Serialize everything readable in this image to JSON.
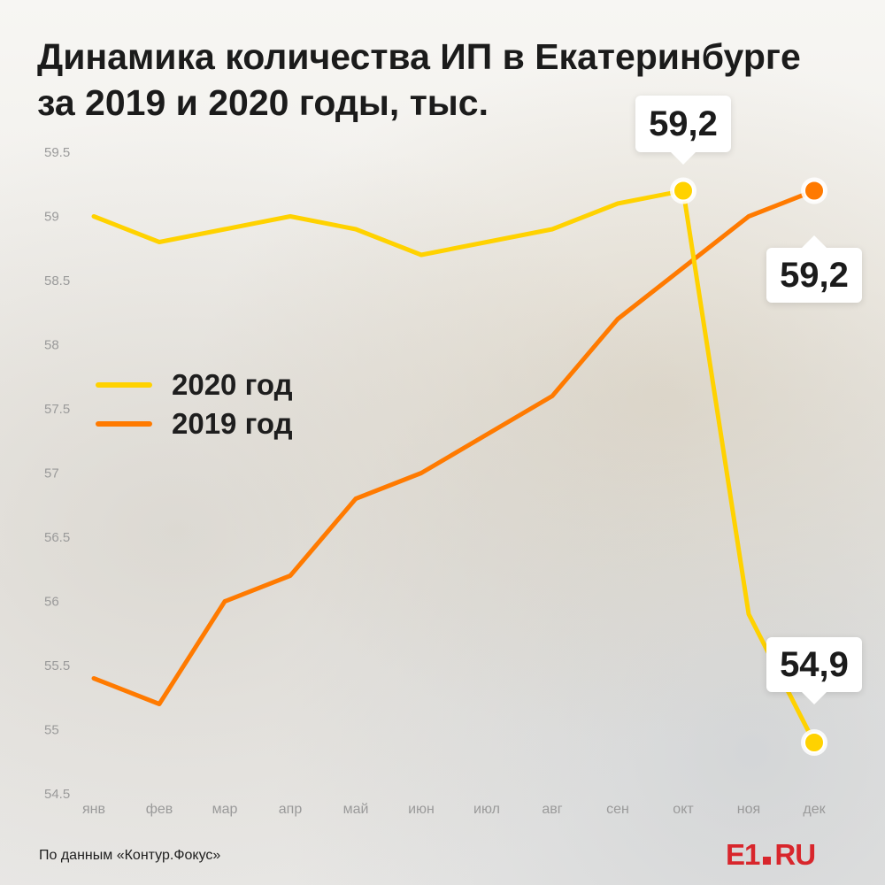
{
  "title": {
    "line1": "Динамика количества ИП в Екатеринбурге",
    "line2": "за 2019 и 2020 годы, тыс."
  },
  "chart_data": {
    "type": "line",
    "categories": [
      "янв",
      "фев",
      "мар",
      "апр",
      "май",
      "июн",
      "июл",
      "авг",
      "сен",
      "окт",
      "ноя",
      "дек"
    ],
    "y_ticks": [
      "59.5",
      "59",
      "58.5",
      "58",
      "57.5",
      "57",
      "56.5",
      "56",
      "55.5",
      "55",
      "54.5"
    ],
    "ylim": [
      54.5,
      59.5
    ],
    "series": [
      {
        "name": "2020 год",
        "color": "#ffd200",
        "values": [
          59.0,
          58.8,
          58.9,
          59.0,
          58.9,
          58.7,
          58.8,
          58.9,
          59.1,
          59.2,
          55.9,
          54.9
        ]
      },
      {
        "name": "2019 год",
        "color": "#ff7a00",
        "values": [
          55.4,
          55.2,
          56.0,
          56.2,
          56.8,
          57.0,
          57.3,
          57.6,
          58.2,
          58.6,
          59.0,
          59.2
        ]
      }
    ],
    "annotations": [
      {
        "series": 0,
        "index": 9,
        "label": "59,2",
        "placement": "above"
      },
      {
        "series": 1,
        "index": 11,
        "label": "59,2",
        "placement": "below"
      },
      {
        "series": 0,
        "index": 11,
        "label": "54,9",
        "placement": "above"
      }
    ],
    "legend": [
      {
        "label": "2020 год",
        "color": "#ffd200"
      },
      {
        "label": "2019 год",
        "color": "#ff7a00"
      }
    ],
    "grid": false,
    "legend_position": "center-left"
  },
  "footer": {
    "source": "По данным «Контур.Фокус»",
    "logo_e1": "E1",
    "logo_ru": "RU"
  }
}
